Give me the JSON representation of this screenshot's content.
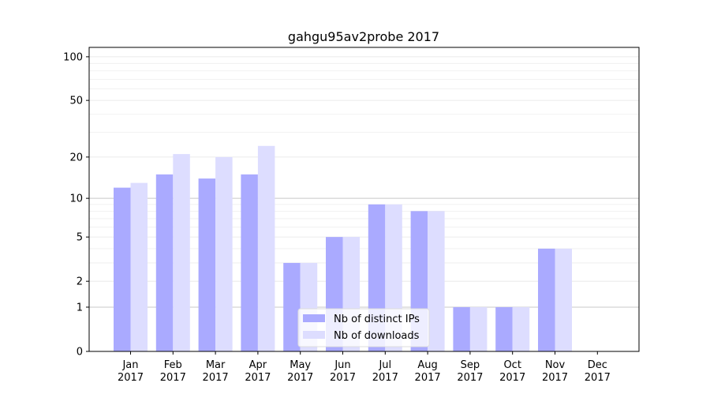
{
  "chart_data": {
    "type": "bar",
    "title": "gahgu95av2probe 2017",
    "xlabel": "",
    "ylabel": "",
    "yscale": "symlog",
    "ylim": [
      0,
      116
    ],
    "yticks": [
      0,
      1,
      2,
      5,
      10,
      20,
      50,
      100
    ],
    "grid": true,
    "legend_position": "lower-center",
    "categories": [
      "Jan\n2017",
      "Feb\n2017",
      "Mar\n2017",
      "Apr\n2017",
      "May\n2017",
      "Jun\n2017",
      "Jul\n2017",
      "Aug\n2017",
      "Sep\n2017",
      "Oct\n2017",
      "Nov\n2017",
      "Dec\n2017"
    ],
    "series": [
      {
        "name": "Nb of distinct IPs",
        "color": "#aaaaff",
        "values": [
          12,
          15,
          14,
          15,
          3,
          5,
          9,
          8,
          1,
          1,
          4,
          0
        ]
      },
      {
        "name": "Nb of downloads",
        "color": "#ddddff",
        "values": [
          13,
          21,
          20,
          24,
          3,
          5,
          9,
          8,
          1,
          1,
          4,
          0
        ]
      }
    ]
  }
}
